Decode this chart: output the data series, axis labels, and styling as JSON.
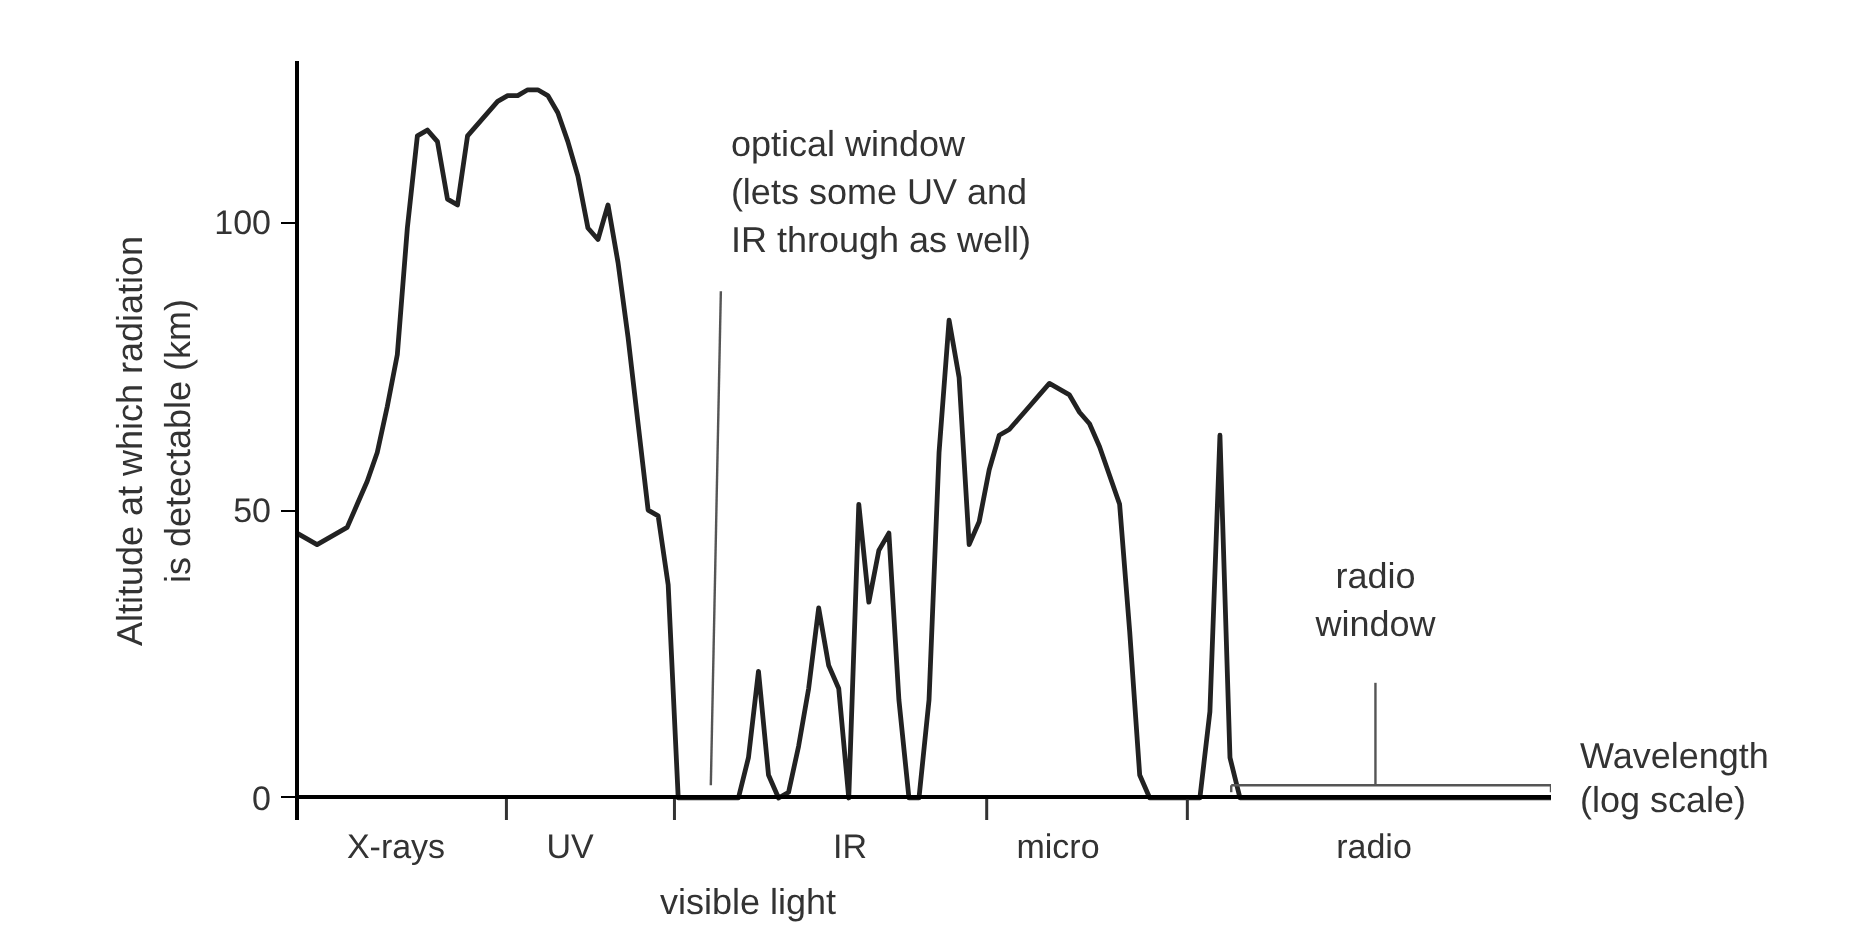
{
  "chart_data": {
    "type": "line",
    "xlabel": "Wavelength\n(log scale)",
    "ylabel": "Altitude at which radiation\nis detectable (km)",
    "ylim": [
      -4,
      128
    ],
    "yticks": [
      0,
      50,
      100
    ],
    "marker": "none",
    "line_style": "solid",
    "categories": [
      null,
      null,
      null,
      null,
      null,
      null,
      null,
      null,
      null,
      null,
      null,
      null,
      null,
      null,
      null,
      null,
      null,
      null,
      null,
      null,
      null,
      null,
      null,
      null,
      null,
      null,
      null,
      null,
      null,
      null,
      null,
      null,
      null,
      null,
      null,
      null,
      null,
      null,
      null,
      null,
      null,
      null,
      null,
      null,
      null,
      null,
      null,
      null,
      null,
      null,
      null,
      null,
      null,
      null,
      null,
      null,
      null,
      null,
      null,
      null,
      null,
      null,
      null,
      null,
      null,
      null,
      null,
      null,
      null,
      null,
      null,
      null,
      null,
      null,
      null,
      null,
      null,
      null,
      null,
      null,
      null,
      null,
      null,
      null,
      null,
      null,
      null,
      null,
      null,
      null,
      null,
      null,
      null,
      null,
      null,
      null,
      null,
      null,
      null,
      null,
      null,
      null,
      null,
      null,
      null,
      null,
      null,
      null,
      null,
      null,
      null,
      null,
      null,
      null,
      null,
      null,
      null,
      null,
      null,
      null,
      null,
      null,
      null,
      null,
      null,
      null
    ],
    "series": [
      {
        "color": "#222222",
        "values": [
          46,
          45,
          44,
          45,
          46,
          47,
          51,
          55,
          60,
          68,
          77,
          99,
          115,
          116,
          114,
          104,
          103,
          115,
          117,
          119,
          121,
          122,
          122,
          123,
          123,
          122,
          119,
          114,
          108,
          99,
          97,
          103,
          93,
          80,
          65,
          50,
          49,
          37,
          0,
          0,
          0,
          0,
          0,
          0,
          0,
          7,
          22,
          4,
          0,
          1,
          9,
          19,
          33,
          23,
          19,
          0,
          51,
          34,
          43,
          46,
          17,
          0,
          0,
          17,
          60,
          83,
          73,
          44,
          48,
          57,
          63,
          64,
          66,
          68,
          70,
          72,
          71,
          70,
          67,
          65,
          61,
          56,
          51,
          29,
          4,
          0,
          0,
          0,
          0,
          0,
          0,
          15,
          63,
          7,
          0,
          0,
          0,
          0,
          0,
          0,
          0,
          0,
          0,
          0,
          0,
          0,
          0,
          0,
          0,
          0,
          0,
          0,
          0,
          0,
          0,
          0,
          0,
          0,
          0,
          0,
          0,
          0,
          0,
          0,
          0,
          0
        ]
      }
    ],
    "annotations": [
      "optical window\n(lets some UV and\nIR through as well)",
      "visible light",
      "radio\nwindow",
      "X-rays",
      "UV",
      "IR",
      "micro",
      "radio"
    ]
  }
}
